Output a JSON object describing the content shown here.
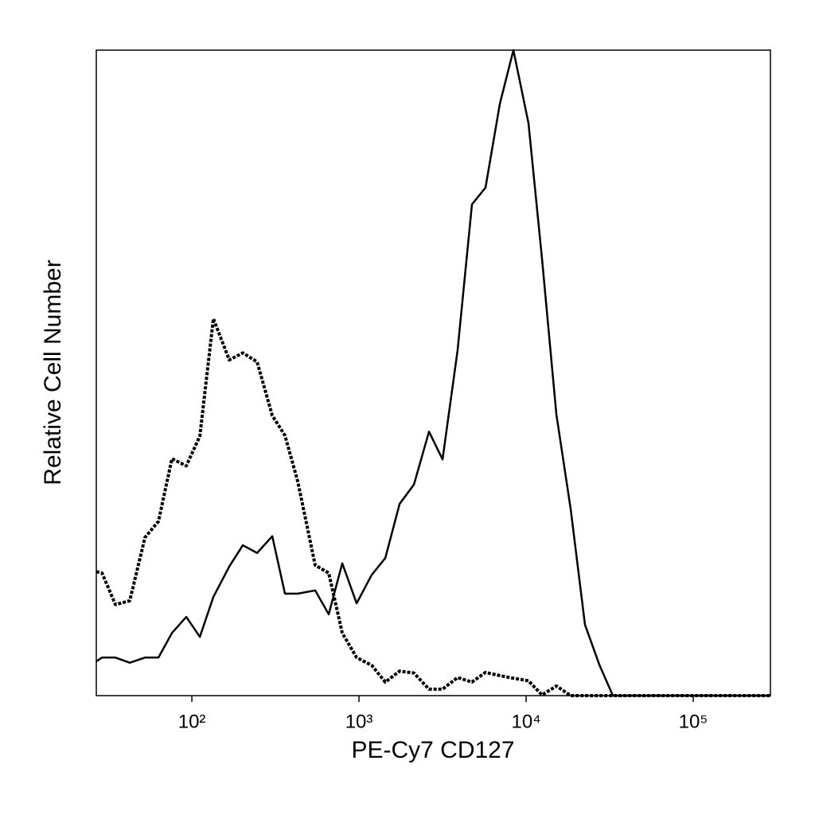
{
  "chart_data": {
    "type": "line",
    "x_label": "PE-Cy7 CD127",
    "y_label": "Relative Cell Number",
    "x_scale": "log",
    "xlim": [
      26.8,
      289700
    ],
    "ylim": [
      0,
      100
    ],
    "xticks": [
      {
        "value": 100,
        "label": "10²"
      },
      {
        "value": 1000,
        "label": "10³"
      },
      {
        "value": 10000,
        "label": "10⁴"
      },
      {
        "value": 100000,
        "label": "10⁵"
      }
    ],
    "x": [
      26.8,
      29.0,
      34.9,
      42.5,
      52.4,
      63.1,
      76.0,
      92.6,
      111.6,
      134.5,
      167.4,
      201.7,
      245.7,
      302.7,
      360.6,
      429.9,
      547.0,
      659.0,
      794.3,
      968,
      1191,
      1436,
      1750,
      2132,
      2624,
      3162,
      3890,
      4742,
      5715,
      6966,
      8395,
      10330,
      12450,
      15170,
      18480,
      22500,
      27420,
      33040,
      289700
    ],
    "series": [
      {
        "color": "#000000",
        "dashed": false,
        "values": [
          5.3,
          5.9,
          5.9,
          5.1,
          5.9,
          5.9,
          9.7,
          12.2,
          9.1,
          15.3,
          20.0,
          23.3,
          22.1,
          24.7,
          15.8,
          15.8,
          16.3,
          12.6,
          20.5,
          14.3,
          18.7,
          21.3,
          29.7,
          32.7,
          40.9,
          36.6,
          53.5,
          76.1,
          78.7,
          91.7,
          100,
          88.7,
          67.7,
          43.6,
          28.9,
          11.0,
          4.8,
          0,
          0
        ]
      },
      {
        "color": "#000000",
        "dashed": true,
        "values": [
          19.2,
          19.0,
          14.1,
          14.7,
          24.5,
          27.0,
          36.7,
          35.6,
          40.2,
          58.4,
          52.0,
          53.1,
          51.7,
          43.4,
          40.3,
          33.2,
          20.2,
          19.0,
          9.7,
          5.9,
          4.7,
          2.1,
          3.8,
          3.5,
          1.0,
          1.0,
          2.8,
          2.1,
          3.6,
          3.1,
          2.7,
          2.3,
          0.1,
          1.5,
          0,
          0,
          0,
          0,
          0
        ]
      }
    ]
  }
}
